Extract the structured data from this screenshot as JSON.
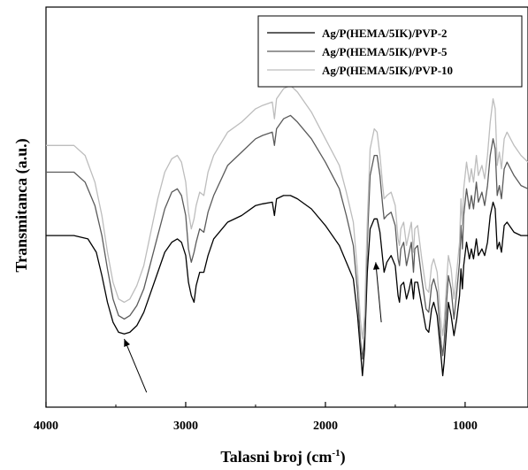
{
  "chart_data": {
    "type": "line",
    "title": "",
    "xlabel": "Talasni broj (cm",
    "xlabel_sup": "-1",
    "xlabel_close": ")",
    "ylabel": "Transmitanca (a.u.)",
    "xlim": [
      4000,
      550
    ],
    "x_reversed": true,
    "ylim": [
      0,
      100
    ],
    "y_ticks_shown": false,
    "x_ticks": [
      4000,
      3000,
      2000,
      1000
    ],
    "x_tick_labels": [
      "4000",
      "3000",
      "2000",
      "1000"
    ],
    "grid": false,
    "legend_position": "top-right",
    "series": [
      {
        "name": "Ag/P(HEMA/5IK)/PVP-2",
        "color": "#000000",
        "points": [
          [
            4000,
            44
          ],
          [
            3900,
            44
          ],
          [
            3800,
            44
          ],
          [
            3700,
            43
          ],
          [
            3640,
            39
          ],
          [
            3600,
            32
          ],
          [
            3560,
            24
          ],
          [
            3520,
            18
          ],
          [
            3480,
            15
          ],
          [
            3440,
            14.5
          ],
          [
            3400,
            15
          ],
          [
            3350,
            17
          ],
          [
            3300,
            21
          ],
          [
            3250,
            27
          ],
          [
            3200,
            33
          ],
          [
            3150,
            39
          ],
          [
            3100,
            42
          ],
          [
            3060,
            43
          ],
          [
            3030,
            42
          ],
          [
            3000,
            38
          ],
          [
            2980,
            30
          ],
          [
            2960,
            26
          ],
          [
            2940,
            24
          ],
          [
            2925,
            29
          ],
          [
            2900,
            33
          ],
          [
            2870,
            33
          ],
          [
            2840,
            38
          ],
          [
            2800,
            43
          ],
          [
            2700,
            48
          ],
          [
            2600,
            50
          ],
          [
            2500,
            53
          ],
          [
            2450,
            53.5
          ],
          [
            2380,
            54
          ],
          [
            2365,
            50
          ],
          [
            2350,
            55
          ],
          [
            2300,
            56
          ],
          [
            2250,
            56
          ],
          [
            2200,
            55
          ],
          [
            2100,
            52
          ],
          [
            2000,
            47
          ],
          [
            1900,
            41
          ],
          [
            1850,
            36
          ],
          [
            1800,
            31
          ],
          [
            1770,
            20
          ],
          [
            1750,
            10
          ],
          [
            1735,
            2
          ],
          [
            1720,
            10
          ],
          [
            1700,
            33
          ],
          [
            1680,
            46
          ],
          [
            1650,
            49
          ],
          [
            1630,
            49
          ],
          [
            1610,
            45
          ],
          [
            1590,
            37
          ],
          [
            1580,
            33
          ],
          [
            1560,
            36
          ],
          [
            1530,
            38
          ],
          [
            1500,
            35
          ],
          [
            1480,
            26
          ],
          [
            1470,
            24
          ],
          [
            1460,
            29
          ],
          [
            1440,
            30
          ],
          [
            1420,
            25
          ],
          [
            1400,
            28
          ],
          [
            1385,
            31
          ],
          [
            1370,
            25
          ],
          [
            1360,
            30
          ],
          [
            1340,
            30
          ],
          [
            1310,
            23
          ],
          [
            1280,
            16
          ],
          [
            1260,
            15
          ],
          [
            1240,
            22
          ],
          [
            1225,
            24
          ],
          [
            1200,
            20
          ],
          [
            1175,
            9
          ],
          [
            1160,
            2
          ],
          [
            1150,
            6
          ],
          [
            1130,
            18
          ],
          [
            1120,
            24
          ],
          [
            1100,
            20
          ],
          [
            1080,
            14
          ],
          [
            1060,
            19
          ],
          [
            1040,
            26
          ],
          [
            1030,
            34
          ],
          [
            1020,
            28
          ],
          [
            1010,
            35
          ],
          [
            990,
            42
          ],
          [
            970,
            37
          ],
          [
            955,
            40
          ],
          [
            940,
            37
          ],
          [
            920,
            43
          ],
          [
            905,
            38
          ],
          [
            880,
            40
          ],
          [
            860,
            38
          ],
          [
            840,
            42
          ],
          [
            820,
            50
          ],
          [
            800,
            54
          ],
          [
            785,
            52
          ],
          [
            770,
            40
          ],
          [
            755,
            42
          ],
          [
            740,
            39
          ],
          [
            720,
            47
          ],
          [
            700,
            48
          ],
          [
            650,
            45
          ],
          [
            600,
            44
          ],
          [
            550,
            44
          ]
        ]
      },
      {
        "name": "Ag/P(HEMA/5IK)/PVP-5",
        "color": "#5a5a5a",
        "points": [
          [
            4000,
            63
          ],
          [
            3900,
            63
          ],
          [
            3800,
            63
          ],
          [
            3720,
            60
          ],
          [
            3650,
            53
          ],
          [
            3600,
            44
          ],
          [
            3560,
            34
          ],
          [
            3520,
            25
          ],
          [
            3480,
            20
          ],
          [
            3440,
            19
          ],
          [
            3400,
            20
          ],
          [
            3350,
            23
          ],
          [
            3300,
            28
          ],
          [
            3250,
            36
          ],
          [
            3200,
            44
          ],
          [
            3150,
            52
          ],
          [
            3100,
            57
          ],
          [
            3060,
            58
          ],
          [
            3030,
            56
          ],
          [
            3000,
            50
          ],
          [
            2980,
            40
          ],
          [
            2960,
            36
          ],
          [
            2940,
            39
          ],
          [
            2925,
            42
          ],
          [
            2900,
            46
          ],
          [
            2870,
            45
          ],
          [
            2840,
            51
          ],
          [
            2800,
            56
          ],
          [
            2700,
            65
          ],
          [
            2600,
            69
          ],
          [
            2500,
            73
          ],
          [
            2450,
            74
          ],
          [
            2380,
            75
          ],
          [
            2365,
            71
          ],
          [
            2350,
            76
          ],
          [
            2300,
            79
          ],
          [
            2250,
            80
          ],
          [
            2200,
            78
          ],
          [
            2100,
            73
          ],
          [
            2000,
            66
          ],
          [
            1900,
            58
          ],
          [
            1850,
            50
          ],
          [
            1800,
            41
          ],
          [
            1770,
            27
          ],
          [
            1750,
            13
          ],
          [
            1735,
            7
          ],
          [
            1720,
            14
          ],
          [
            1700,
            42
          ],
          [
            1680,
            62
          ],
          [
            1650,
            68
          ],
          [
            1630,
            68
          ],
          [
            1610,
            62
          ],
          [
            1590,
            53
          ],
          [
            1580,
            49
          ],
          [
            1560,
            50
          ],
          [
            1530,
            51
          ],
          [
            1500,
            47
          ],
          [
            1480,
            37
          ],
          [
            1470,
            35
          ],
          [
            1460,
            40
          ],
          [
            1440,
            42
          ],
          [
            1420,
            35
          ],
          [
            1400,
            39
          ],
          [
            1385,
            42
          ],
          [
            1370,
            33
          ],
          [
            1360,
            40
          ],
          [
            1340,
            41
          ],
          [
            1310,
            31
          ],
          [
            1280,
            22
          ],
          [
            1260,
            21
          ],
          [
            1240,
            29
          ],
          [
            1225,
            31
          ],
          [
            1200,
            27
          ],
          [
            1175,
            13
          ],
          [
            1160,
            8
          ],
          [
            1150,
            12
          ],
          [
            1130,
            26
          ],
          [
            1120,
            32
          ],
          [
            1100,
            28
          ],
          [
            1080,
            19
          ],
          [
            1060,
            27
          ],
          [
            1040,
            36
          ],
          [
            1030,
            47
          ],
          [
            1020,
            40
          ],
          [
            1010,
            50
          ],
          [
            990,
            58
          ],
          [
            970,
            52
          ],
          [
            955,
            56
          ],
          [
            940,
            52
          ],
          [
            920,
            60
          ],
          [
            905,
            54
          ],
          [
            880,
            57
          ],
          [
            860,
            53
          ],
          [
            840,
            59
          ],
          [
            820,
            68
          ],
          [
            800,
            73
          ],
          [
            785,
            70
          ],
          [
            770,
            56
          ],
          [
            755,
            59
          ],
          [
            740,
            55
          ],
          [
            720,
            64
          ],
          [
            700,
            66
          ],
          [
            650,
            62
          ],
          [
            600,
            59
          ],
          [
            550,
            58
          ]
        ]
      },
      {
        "name": "Ag/P(HEMA/5IK)/PVP-10",
        "color": "#bdbdbd",
        "points": [
          [
            4000,
            71
          ],
          [
            3900,
            71
          ],
          [
            3800,
            71
          ],
          [
            3720,
            68
          ],
          [
            3650,
            60
          ],
          [
            3600,
            50
          ],
          [
            3560,
            39
          ],
          [
            3520,
            30
          ],
          [
            3480,
            25
          ],
          [
            3440,
            24
          ],
          [
            3400,
            25
          ],
          [
            3350,
            29
          ],
          [
            3300,
            35
          ],
          [
            3250,
            45
          ],
          [
            3200,
            55
          ],
          [
            3150,
            63
          ],
          [
            3100,
            67
          ],
          [
            3060,
            68
          ],
          [
            3030,
            66
          ],
          [
            3000,
            60
          ],
          [
            2980,
            51
          ],
          [
            2960,
            46
          ],
          [
            2940,
            49
          ],
          [
            2925,
            53
          ],
          [
            2900,
            57
          ],
          [
            2870,
            56
          ],
          [
            2840,
            63
          ],
          [
            2800,
            68
          ],
          [
            2700,
            75
          ],
          [
            2600,
            78
          ],
          [
            2500,
            82
          ],
          [
            2450,
            83
          ],
          [
            2380,
            84
          ],
          [
            2365,
            79
          ],
          [
            2350,
            85
          ],
          [
            2300,
            88
          ],
          [
            2250,
            89
          ],
          [
            2200,
            87
          ],
          [
            2100,
            81
          ],
          [
            2000,
            73
          ],
          [
            1900,
            65
          ],
          [
            1850,
            57
          ],
          [
            1800,
            48
          ],
          [
            1770,
            33
          ],
          [
            1750,
            19
          ],
          [
            1735,
            13
          ],
          [
            1720,
            20
          ],
          [
            1700,
            48
          ],
          [
            1680,
            70
          ],
          [
            1650,
            76
          ],
          [
            1630,
            75
          ],
          [
            1610,
            68
          ],
          [
            1590,
            59
          ],
          [
            1580,
            55
          ],
          [
            1560,
            56
          ],
          [
            1530,
            57
          ],
          [
            1500,
            53
          ],
          [
            1480,
            43
          ],
          [
            1470,
            41
          ],
          [
            1460,
            46
          ],
          [
            1440,
            48
          ],
          [
            1420,
            41
          ],
          [
            1400,
            45
          ],
          [
            1385,
            48
          ],
          [
            1370,
            39
          ],
          [
            1360,
            46
          ],
          [
            1340,
            47
          ],
          [
            1310,
            37
          ],
          [
            1280,
            28
          ],
          [
            1260,
            27
          ],
          [
            1240,
            35
          ],
          [
            1225,
            37
          ],
          [
            1200,
            33
          ],
          [
            1175,
            19
          ],
          [
            1160,
            14
          ],
          [
            1150,
            18
          ],
          [
            1130,
            32
          ],
          [
            1120,
            38
          ],
          [
            1100,
            34
          ],
          [
            1080,
            25
          ],
          [
            1060,
            33
          ],
          [
            1040,
            42
          ],
          [
            1030,
            55
          ],
          [
            1020,
            47
          ],
          [
            1010,
            58
          ],
          [
            990,
            66
          ],
          [
            970,
            60
          ],
          [
            955,
            64
          ],
          [
            940,
            60
          ],
          [
            920,
            68
          ],
          [
            905,
            62
          ],
          [
            880,
            65
          ],
          [
            860,
            61
          ],
          [
            840,
            68
          ],
          [
            820,
            78
          ],
          [
            800,
            85
          ],
          [
            785,
            82
          ],
          [
            770,
            65
          ],
          [
            755,
            69
          ],
          [
            740,
            64
          ],
          [
            720,
            73
          ],
          [
            700,
            75
          ],
          [
            650,
            71
          ],
          [
            600,
            68
          ],
          [
            550,
            66
          ]
        ]
      }
    ],
    "annotations": [
      {
        "type": "arrow",
        "from": [
          3280,
          -3
        ],
        "to": [
          3440,
          13
        ]
      },
      {
        "type": "arrow",
        "from": [
          1600,
          18
        ],
        "to": [
          1640,
          36
        ]
      }
    ]
  }
}
